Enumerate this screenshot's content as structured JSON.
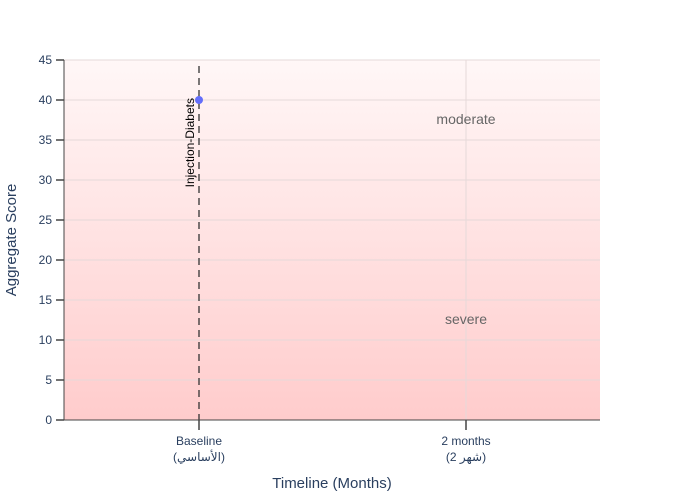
{
  "chart_data": {
    "type": "scatter",
    "categories": [
      "Baseline\n(الأساسي)",
      "2 months\n(شهر 2)"
    ],
    "xlabel": "Timeline (Months)",
    "ylabel": "Aggregate Score",
    "ylim": [
      0,
      45
    ],
    "yticks": [
      0,
      5,
      10,
      15,
      20,
      25,
      30,
      35,
      40,
      45
    ],
    "grid": true,
    "series": [
      {
        "category_index": 0,
        "values": [
          40
        ],
        "color": "#636efa"
      }
    ],
    "annotations": [
      {
        "text": "Injection-Diabets",
        "category_index": 0,
        "orientation": "vertical",
        "y": 40
      },
      {
        "text": "moderate",
        "category_index": 1,
        "y": 37.5
      },
      {
        "text": "severe",
        "category_index": 1,
        "y": 12.5
      }
    ],
    "reference_line": {
      "category_index": 0,
      "style": "dashed"
    },
    "background_gradient": {
      "top": "#fff7f7",
      "bottom": "#ffcccc"
    }
  }
}
